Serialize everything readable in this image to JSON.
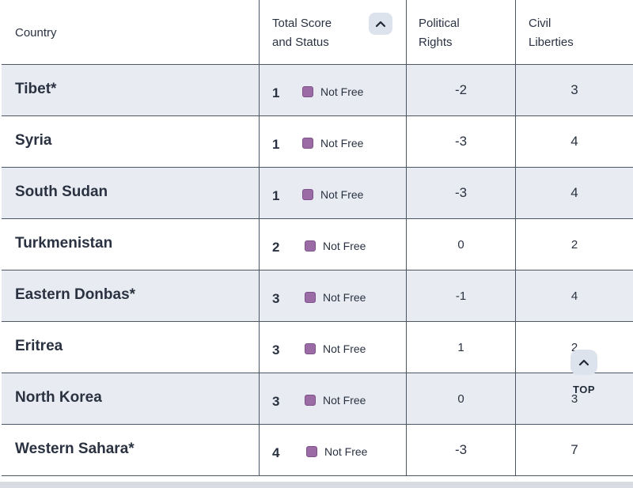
{
  "table": {
    "headers": {
      "country": "Country",
      "total_line1": "Total Score",
      "total_line2": "and Status",
      "political_line1": "Political",
      "political_line2": "Rights",
      "civil_line1": "Civil",
      "civil_line2": "Liberties",
      "sort_icon": "chevron-up-icon"
    },
    "rows": [
      {
        "country": "Tibet*",
        "score": "1",
        "status": "Not Free",
        "political": "-2",
        "civil": "3"
      },
      {
        "country": "Syria",
        "score": "1",
        "status": "Not Free",
        "political": "-3",
        "civil": "4"
      },
      {
        "country": "South Sudan",
        "score": "1",
        "status": "Not Free",
        "political": "-3",
        "civil": "4"
      },
      {
        "country": "Turkmenistan",
        "score": "2",
        "status": "Not Free",
        "political": "0",
        "civil": "2"
      },
      {
        "country": "Eastern Donbas*",
        "score": "3",
        "status": "Not Free",
        "political": "-1",
        "civil": "4"
      },
      {
        "country": "Eritrea",
        "score": "3",
        "status": "Not Free",
        "political": "1",
        "civil": "2"
      },
      {
        "country": "North Korea",
        "score": "3",
        "status": "Not Free",
        "political": "0",
        "civil": "3"
      },
      {
        "country": "Western Sahara*",
        "score": "4",
        "status": "Not Free",
        "political": "-3",
        "civil": "7"
      }
    ]
  },
  "status_color": "#9b6ba6",
  "top_button": {
    "label": "TOP",
    "icon": "chevron-up-icon"
  }
}
